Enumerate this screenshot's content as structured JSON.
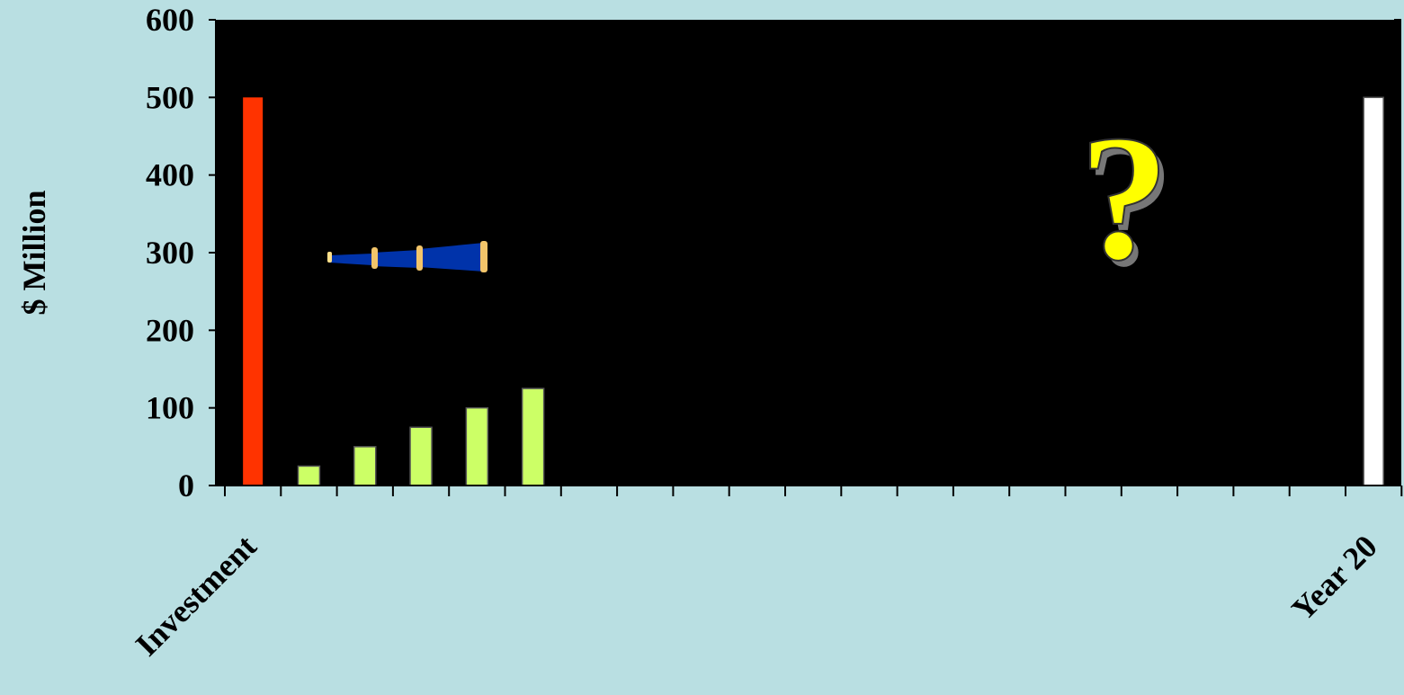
{
  "chart_data": {
    "type": "bar",
    "ylabel": "$ Million",
    "ylim": [
      0,
      600
    ],
    "yticks": [
      0,
      100,
      200,
      300,
      400,
      500,
      600
    ],
    "x_slots": 21,
    "x_tick_labels": [
      {
        "slot": 0,
        "text": "Investment"
      },
      {
        "slot": 20,
        "text": "Year 20"
      }
    ],
    "bars": [
      {
        "slot": 0,
        "value": 500,
        "color": "#ff3300"
      },
      {
        "slot": 1,
        "value": 25,
        "color": "#ccff66"
      },
      {
        "slot": 2,
        "value": 50,
        "color": "#ccff66"
      },
      {
        "slot": 3,
        "value": 75,
        "color": "#ccff66"
      },
      {
        "slot": 4,
        "value": 100,
        "color": "#ccff66"
      },
      {
        "slot": 5,
        "value": 125,
        "color": "#ccff66"
      },
      {
        "slot": 20,
        "value": 500,
        "color": "#ffffff"
      }
    ],
    "plot_background": "#000000",
    "page_background": "#b9dfe2",
    "grid": false,
    "legend": "none"
  },
  "decorations": {
    "question_mark": "?",
    "question_mark_color": "#ffff00",
    "telescope_icon": "telescope-icon"
  }
}
